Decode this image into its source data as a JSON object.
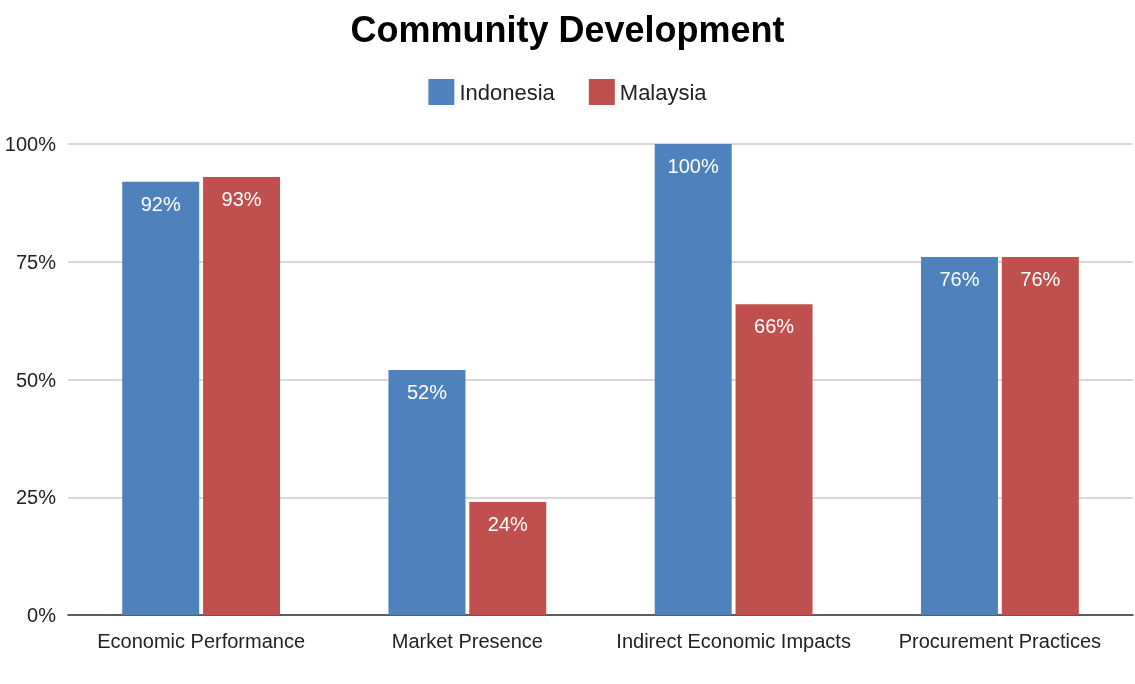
{
  "chart_data": {
    "type": "bar",
    "title": "Community Development",
    "categories": [
      "Economic Performance",
      "Market Presence",
      "Indirect Economic Impacts",
      "Procurement Practices"
    ],
    "series": [
      {
        "name": "Indonesia",
        "color": "#4f81bd",
        "values": [
          92,
          52,
          100,
          76
        ],
        "value_labels": [
          "92%",
          "52%",
          "100%",
          "76%"
        ]
      },
      {
        "name": "Malaysia",
        "color": "#c0504d",
        "values": [
          93,
          24,
          66,
          76
        ],
        "value_labels": [
          "93%",
          "24%",
          "66%",
          "76%"
        ]
      }
    ],
    "ylim": [
      0,
      100
    ],
    "yticks": [
      {
        "value": 0,
        "label": "0%"
      },
      {
        "value": 25,
        "label": "25%"
      },
      {
        "value": 50,
        "label": "50%"
      },
      {
        "value": 75,
        "label": "75%"
      },
      {
        "value": 100,
        "label": "100%"
      }
    ],
    "grid": "y",
    "legend": "top"
  }
}
